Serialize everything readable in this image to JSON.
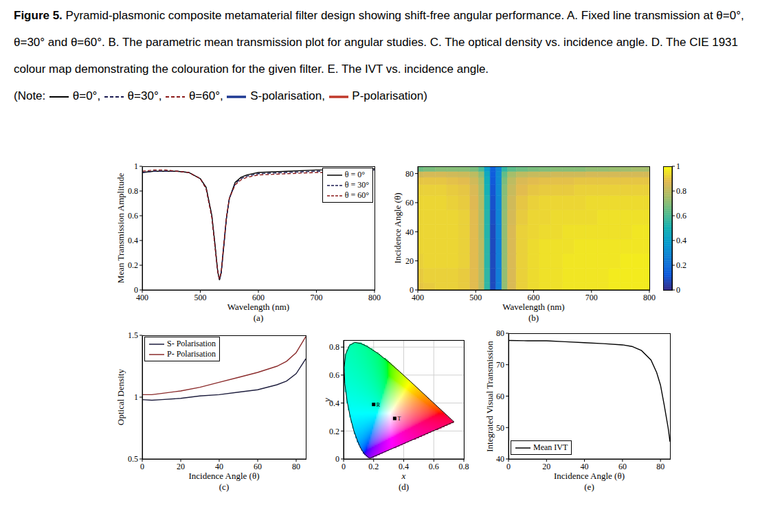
{
  "caption": {
    "label": "Figure 5.",
    "text": "Pyramid-plasmonic composite metamaterial filter design showing shift-free angular performance. A. Fixed line transmission at θ=0°, θ=30° and θ=60°. B. The parametric mean transmission plot for angular studies. C. The optical density vs. incidence angle. D. The CIE 1931 colour map demonstrating the colouration for the given filter. E. The IVT vs. incidence angle.",
    "note_prefix": "(Note:",
    "note": [
      {
        "label": "θ=0°,",
        "color": "#000000",
        "line_style": "solid"
      },
      {
        "label": "θ=30°,",
        "color": "#1a1a50",
        "line_style": "dashed"
      },
      {
        "label": "θ=60°,",
        "color": "#8b1a1a",
        "line_style": "dashed"
      },
      {
        "label": "S-polarisation,",
        "color": "#1f3a93",
        "line_style": "solid"
      },
      {
        "label": "P-polarisation",
        "color": "#c0392b",
        "line_style": "solid"
      }
    ],
    "note_suffix": ")"
  },
  "chart_data": [
    {
      "type": "line",
      "title": "(a)",
      "xlabel": "Wavelength (nm)",
      "ylabel": "Mean Transmission Amplitude",
      "x": [
        400,
        420,
        440,
        460,
        480,
        500,
        510,
        520,
        525,
        530,
        533,
        536,
        540,
        545,
        550,
        560,
        570,
        580,
        600,
        650,
        700,
        750,
        800
      ],
      "series": [
        {
          "name": "θ = 0°",
          "color": "#000000",
          "line_style": "solid",
          "values": [
            0.95,
            0.96,
            0.96,
            0.96,
            0.95,
            0.9,
            0.83,
            0.6,
            0.38,
            0.15,
            0.08,
            0.14,
            0.33,
            0.58,
            0.74,
            0.87,
            0.91,
            0.93,
            0.95,
            0.96,
            0.97,
            0.97,
            0.98
          ]
        },
        {
          "name": "θ = 30°",
          "color": "#1a1a50",
          "line_style": "dashed",
          "values": [
            0.95,
            0.96,
            0.96,
            0.96,
            0.95,
            0.9,
            0.82,
            0.59,
            0.37,
            0.15,
            0.08,
            0.14,
            0.34,
            0.58,
            0.74,
            0.86,
            0.9,
            0.92,
            0.94,
            0.95,
            0.96,
            0.96,
            0.97
          ]
        },
        {
          "name": "θ = 60°",
          "color": "#8b1a1a",
          "line_style": "dashed",
          "values": [
            0.96,
            0.97,
            0.97,
            0.96,
            0.95,
            0.9,
            0.82,
            0.58,
            0.36,
            0.15,
            0.09,
            0.15,
            0.35,
            0.59,
            0.74,
            0.85,
            0.89,
            0.91,
            0.93,
            0.94,
            0.95,
            0.95,
            0.96
          ]
        }
      ],
      "xlim": [
        400,
        800
      ],
      "xticks": [
        400,
        500,
        600,
        700,
        800
      ],
      "ylim": [
        0,
        1
      ],
      "yticks": [
        0,
        0.2,
        0.4,
        0.6,
        0.8,
        1
      ],
      "grid": false,
      "legend": "upper right"
    },
    {
      "type": "heatmap",
      "title": "(b)",
      "xlabel": "Wavelength (nm)",
      "ylabel": "Incidence Angle (θ)",
      "x": [
        400,
        420,
        440,
        460,
        480,
        500,
        510,
        520,
        530,
        540,
        550,
        560,
        580,
        600,
        620,
        640,
        660,
        680,
        700,
        720,
        740,
        760,
        780,
        800
      ],
      "y": [
        0,
        10,
        20,
        30,
        40,
        50,
        60,
        70,
        75,
        80,
        83
      ],
      "values": [
        [
          0.9,
          0.91,
          0.92,
          0.92,
          0.91,
          0.88,
          0.8,
          0.55,
          0.08,
          0.25,
          0.72,
          0.86,
          0.92,
          0.94,
          0.95,
          0.95,
          0.96,
          0.96,
          0.96,
          0.96,
          0.97,
          0.97,
          0.97,
          0.97
        ],
        [
          0.91,
          0.92,
          0.92,
          0.92,
          0.91,
          0.88,
          0.8,
          0.55,
          0.08,
          0.25,
          0.72,
          0.86,
          0.92,
          0.94,
          0.95,
          0.95,
          0.96,
          0.96,
          0.96,
          0.96,
          0.97,
          0.97,
          0.97,
          0.97
        ],
        [
          0.92,
          0.93,
          0.93,
          0.93,
          0.92,
          0.88,
          0.8,
          0.54,
          0.08,
          0.26,
          0.72,
          0.86,
          0.92,
          0.94,
          0.95,
          0.95,
          0.96,
          0.96,
          0.96,
          0.96,
          0.96,
          0.97,
          0.97,
          0.97
        ],
        [
          0.93,
          0.93,
          0.93,
          0.93,
          0.92,
          0.88,
          0.8,
          0.54,
          0.08,
          0.26,
          0.72,
          0.86,
          0.92,
          0.94,
          0.95,
          0.95,
          0.95,
          0.96,
          0.96,
          0.96,
          0.96,
          0.96,
          0.96,
          0.96
        ],
        [
          0.93,
          0.93,
          0.93,
          0.93,
          0.92,
          0.88,
          0.79,
          0.53,
          0.08,
          0.27,
          0.72,
          0.86,
          0.92,
          0.93,
          0.94,
          0.94,
          0.95,
          0.95,
          0.95,
          0.95,
          0.95,
          0.95,
          0.96,
          0.96
        ],
        [
          0.93,
          0.93,
          0.93,
          0.93,
          0.92,
          0.88,
          0.79,
          0.53,
          0.09,
          0.28,
          0.72,
          0.85,
          0.91,
          0.93,
          0.93,
          0.94,
          0.94,
          0.94,
          0.94,
          0.95,
          0.95,
          0.95,
          0.95,
          0.95
        ],
        [
          0.93,
          0.93,
          0.93,
          0.92,
          0.91,
          0.87,
          0.78,
          0.52,
          0.1,
          0.29,
          0.71,
          0.84,
          0.9,
          0.92,
          0.93,
          0.93,
          0.93,
          0.93,
          0.94,
          0.94,
          0.94,
          0.94,
          0.94,
          0.94
        ],
        [
          0.92,
          0.92,
          0.92,
          0.91,
          0.9,
          0.86,
          0.77,
          0.5,
          0.11,
          0.3,
          0.7,
          0.82,
          0.88,
          0.9,
          0.91,
          0.91,
          0.91,
          0.92,
          0.92,
          0.92,
          0.92,
          0.92,
          0.92,
          0.92
        ],
        [
          0.9,
          0.9,
          0.9,
          0.89,
          0.88,
          0.84,
          0.75,
          0.48,
          0.12,
          0.3,
          0.68,
          0.8,
          0.86,
          0.88,
          0.89,
          0.89,
          0.89,
          0.9,
          0.9,
          0.9,
          0.9,
          0.9,
          0.9,
          0.9
        ],
        [
          0.84,
          0.85,
          0.85,
          0.84,
          0.83,
          0.8,
          0.71,
          0.45,
          0.13,
          0.3,
          0.64,
          0.75,
          0.8,
          0.82,
          0.83,
          0.84,
          0.84,
          0.84,
          0.85,
          0.85,
          0.85,
          0.85,
          0.85,
          0.85
        ],
        [
          0.66,
          0.68,
          0.7,
          0.7,
          0.7,
          0.68,
          0.6,
          0.4,
          0.14,
          0.28,
          0.55,
          0.63,
          0.66,
          0.68,
          0.69,
          0.7,
          0.7,
          0.7,
          0.72,
          0.72,
          0.73,
          0.74,
          0.75,
          0.75
        ]
      ],
      "xlim": [
        400,
        800
      ],
      "xticks": [
        400,
        500,
        600,
        700,
        800
      ],
      "ylim": [
        0,
        85
      ],
      "yticks": [
        0,
        20,
        40,
        60,
        80
      ],
      "colorbar": {
        "range": [
          0,
          1
        ],
        "ticks": [
          0,
          0.2,
          0.4,
          0.6,
          0.8,
          1
        ]
      }
    },
    {
      "type": "line",
      "title": "(c)",
      "xlabel": "Incidence Angle (θ)",
      "ylabel": "Optical Density",
      "x": [
        0,
        5,
        10,
        20,
        30,
        40,
        50,
        60,
        70,
        75,
        80,
        85
      ],
      "series": [
        {
          "name": "S- Polarisation",
          "color": "#1c1c3c",
          "line_style": "solid",
          "values": [
            0.98,
            0.975,
            0.98,
            0.99,
            1.01,
            1.02,
            1.04,
            1.06,
            1.1,
            1.13,
            1.19,
            1.31
          ]
        },
        {
          "name": "P- Polarisation",
          "color": "#8a2a2a",
          "line_style": "solid",
          "values": [
            1.02,
            1.02,
            1.03,
            1.05,
            1.08,
            1.12,
            1.16,
            1.2,
            1.25,
            1.29,
            1.36,
            1.49
          ]
        }
      ],
      "xlim": [
        0,
        85
      ],
      "xticks": [
        0,
        20,
        40,
        60,
        80
      ],
      "ylim": [
        0.5,
        1.5
      ],
      "yticks": [
        0.5,
        1,
        1.5
      ],
      "grid": false,
      "legend": "upper left"
    },
    {
      "type": "scatter",
      "title": "(d)",
      "xlabel": "x",
      "ylabel": "y",
      "locus": {
        "x": [
          0.1741,
          0.144,
          0.1241,
          0.1096,
          0.0913,
          0.0687,
          0.0454,
          0.0235,
          0.0082,
          0.0039,
          0.0139,
          0.0389,
          0.0743,
          0.1142,
          0.1547,
          0.2296,
          0.3016,
          0.3731,
          0.4441,
          0.5125,
          0.5752,
          0.627,
          0.6915,
          0.719,
          0.7347
        ],
        "y": [
          0.005,
          0.0297,
          0.0578,
          0.0868,
          0.1327,
          0.2007,
          0.295,
          0.4127,
          0.5384,
          0.6548,
          0.7502,
          0.812,
          0.8338,
          0.8262,
          0.8059,
          0.7543,
          0.6923,
          0.6245,
          0.5547,
          0.4866,
          0.4242,
          0.3725,
          0.3083,
          0.2809,
          0.2653
        ]
      },
      "points": [
        {
          "label": "R",
          "x": 0.2,
          "y": 0.39
        },
        {
          "label": "T",
          "x": 0.34,
          "y": 0.29
        }
      ],
      "marker": "square",
      "xlim": [
        0,
        0.8
      ],
      "xticks": [
        0,
        0.2,
        0.4,
        0.6,
        0.8
      ],
      "ylim": [
        0,
        0.85
      ],
      "yticks": [
        0,
        0.2,
        0.4,
        0.6,
        0.8
      ],
      "grid": true
    },
    {
      "type": "line",
      "title": "(e)",
      "xlabel": "Incidence Angle (θ)",
      "ylabel": "Integrated Visual Transmission",
      "x": [
        0,
        10,
        20,
        30,
        40,
        50,
        60,
        65,
        70,
        75,
        78,
        80,
        82,
        84,
        85
      ],
      "series": [
        {
          "name": "Mean IVT",
          "color": "#000000",
          "line_style": "solid",
          "values": [
            77.7,
            77.6,
            77.6,
            77.3,
            77.0,
            76.7,
            76.3,
            75.8,
            74.5,
            71.5,
            67.5,
            63.5,
            57,
            50,
            45.5
          ]
        }
      ],
      "xlim": [
        0,
        85
      ],
      "xticks": [
        0,
        20,
        40,
        60,
        80
      ],
      "ylim": [
        40,
        80
      ],
      "yticks": [
        40,
        50,
        60,
        70,
        80
      ],
      "grid": false,
      "legend": "lower left"
    }
  ]
}
